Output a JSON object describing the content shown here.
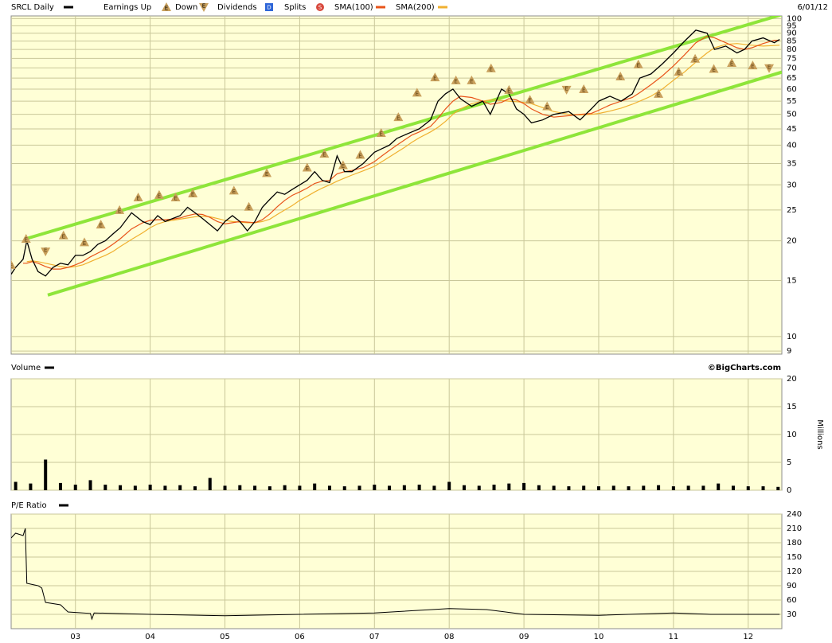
{
  "chart_data": [
    {
      "type": "line",
      "date": "6/01/12",
      "log_scale": true,
      "grid": true,
      "legend_items": [
        {
          "label": "Earnings Up",
          "icon": "E"
        },
        {
          "label": "Down",
          "icon": "E"
        },
        {
          "label": "Dividends",
          "icon": "D"
        },
        {
          "label": "Splits",
          "icon": "S"
        }
      ],
      "xlim": [
        2002.14,
        2012.45
      ],
      "xticks": [
        {
          "value": 2003,
          "label": "03"
        },
        {
          "value": 2004,
          "label": "04"
        },
        {
          "value": 2005,
          "label": "05"
        },
        {
          "value": 2006,
          "label": "06"
        },
        {
          "value": 2007,
          "label": "07"
        },
        {
          "value": 2008,
          "label": "08"
        },
        {
          "value": 2009,
          "label": "09"
        },
        {
          "value": 2010,
          "label": "10"
        },
        {
          "value": 2011,
          "label": "11"
        },
        {
          "value": 2012,
          "label": "12"
        }
      ],
      "ylim": [
        8.8,
        102
      ],
      "yticks": [
        9,
        10,
        15,
        20,
        25,
        30,
        35,
        40,
        45,
        50,
        55,
        60,
        65,
        70,
        75,
        80,
        85,
        90,
        95,
        100
      ],
      "x": [
        2002.14,
        2002.2,
        2002.3,
        2002.35,
        2002.42,
        2002.5,
        2002.6,
        2002.7,
        2002.8,
        2002.9,
        2003.0,
        2003.1,
        2003.2,
        2003.3,
        2003.4,
        2003.5,
        2003.6,
        2003.75,
        2003.9,
        2004.0,
        2004.1,
        2004.2,
        2004.3,
        2004.4,
        2004.5,
        2004.6,
        2004.7,
        2004.8,
        2004.9,
        2005.0,
        2005.1,
        2005.2,
        2005.3,
        2005.4,
        2005.5,
        2005.6,
        2005.7,
        2005.8,
        2005.9,
        2006.0,
        2006.1,
        2006.2,
        2006.3,
        2006.4,
        2006.5,
        2006.6,
        2006.7,
        2006.85,
        2007.0,
        2007.1,
        2007.2,
        2007.3,
        2007.4,
        2007.5,
        2007.6,
        2007.75,
        2007.85,
        2007.95,
        2008.05,
        2008.15,
        2008.3,
        2008.45,
        2008.55,
        2008.7,
        2008.8,
        2008.9,
        2009.0,
        2009.1,
        2009.25,
        2009.4,
        2009.6,
        2009.75,
        2009.9,
        2010.0,
        2010.15,
        2010.3,
        2010.45,
        2010.55,
        2010.7,
        2010.85,
        2011.0,
        2011.15,
        2011.3,
        2011.45,
        2011.55,
        2011.7,
        2011.85,
        2011.95,
        2012.05,
        2012.2,
        2012.35,
        2012.42
      ],
      "series": [
        {
          "name": "SRCL Daily",
          "color": "#000000",
          "values": [
            15.7,
            16.5,
            17.5,
            20,
            17.5,
            16,
            15.5,
            16.5,
            17,
            16.8,
            18,
            18,
            18.5,
            19.5,
            20,
            21,
            22,
            24.5,
            23,
            22.5,
            24,
            23,
            23.5,
            24,
            25.5,
            24.5,
            23.5,
            22.5,
            21.5,
            23,
            24,
            23,
            21.5,
            23,
            25.5,
            27,
            28.5,
            28,
            29,
            30,
            31,
            33,
            31,
            30.5,
            37,
            33,
            33,
            35,
            38,
            39,
            40,
            42,
            43,
            44,
            45,
            48,
            55,
            58,
            60,
            56,
            53,
            55,
            50,
            60,
            58,
            52,
            50,
            47,
            48,
            50,
            51,
            48,
            52,
            55,
            57,
            55,
            58,
            65,
            67,
            72,
            78,
            85,
            92,
            90,
            80,
            82,
            78,
            80,
            85,
            87,
            84,
            86
          ]
        },
        {
          "name": "SMA(100)",
          "color": "#e8541a",
          "values": [
            null,
            null,
            17,
            17,
            17.2,
            17,
            16.6,
            16.3,
            16.3,
            16.5,
            16.8,
            17.2,
            17.8,
            18.3,
            18.8,
            19.5,
            20.3,
            21.8,
            22.8,
            23.2,
            23.3,
            23.3,
            23.4,
            23.6,
            24,
            24.3,
            24.2,
            23.7,
            23,
            22.6,
            22.8,
            23,
            22.9,
            22.8,
            23.3,
            24.3,
            25.6,
            26.8,
            27.8,
            28.5,
            29.3,
            30.3,
            30.8,
            31,
            32.5,
            33,
            33.3,
            34,
            35.5,
            37,
            38.5,
            40,
            41.5,
            43,
            44,
            45.8,
            48.5,
            52,
            55,
            57,
            56.5,
            55,
            53.8,
            54.5,
            56,
            55.5,
            54,
            52,
            50,
            49,
            49.5,
            50,
            50.3,
            51.5,
            53.5,
            55,
            56.5,
            58.5,
            62,
            66,
            71,
            77,
            84,
            88,
            87,
            84,
            81,
            80,
            81,
            83.5,
            85.5,
            85.5
          ]
        },
        {
          "name": "SMA(200)",
          "color": "#f0b030",
          "values": [
            null,
            null,
            null,
            17.2,
            17.3,
            17.2,
            17,
            16.8,
            16.6,
            16.5,
            16.6,
            16.8,
            17.2,
            17.6,
            18,
            18.5,
            19.2,
            20.2,
            21.2,
            22,
            22.6,
            23,
            23.2,
            23.4,
            23.6,
            23.8,
            23.9,
            23.8,
            23.5,
            23.2,
            23,
            22.9,
            22.8,
            22.8,
            23,
            23.4,
            24.2,
            25,
            25.8,
            26.8,
            27.6,
            28.5,
            29.3,
            30,
            30.8,
            31.5,
            32.2,
            33.2,
            34.3,
            35.5,
            36.7,
            38,
            39.3,
            40.8,
            42.2,
            44,
            45.5,
            47.5,
            50,
            52,
            54,
            55,
            55.5,
            55.3,
            55,
            54.8,
            54.5,
            54,
            52.5,
            51,
            50,
            49.8,
            50,
            50.3,
            51.2,
            52.3,
            53.8,
            55,
            57,
            60,
            64,
            68,
            73,
            78,
            81,
            83,
            83.5,
            83,
            82.5,
            82,
            82.3,
            82.5
          ]
        }
      ],
      "trendlines": [
        {
          "color": "#8ee53a",
          "x": [
            2002.34,
            2012.45
          ],
          "values": [
            20.3,
            103
          ]
        },
        {
          "color": "#8ee53a",
          "x": [
            2002.63,
            2012.45
          ],
          "values": [
            13.5,
            67.9
          ]
        }
      ],
      "earnings": [
        {
          "x": 2002.14,
          "value": 16.8,
          "dir": "up"
        },
        {
          "x": 2002.34,
          "value": 20.3,
          "dir": "up"
        },
        {
          "x": 2002.6,
          "value": 18.5,
          "dir": "down"
        },
        {
          "x": 2002.84,
          "value": 20.8,
          "dir": "up"
        },
        {
          "x": 2003.12,
          "value": 19.8,
          "dir": "up"
        },
        {
          "x": 2003.34,
          "value": 22.5,
          "dir": "up"
        },
        {
          "x": 2003.59,
          "value": 25,
          "dir": "up"
        },
        {
          "x": 2003.84,
          "value": 27.4,
          "dir": "up"
        },
        {
          "x": 2004.12,
          "value": 27.9,
          "dir": "up"
        },
        {
          "x": 2004.34,
          "value": 27.4,
          "dir": "up"
        },
        {
          "x": 2004.57,
          "value": 28.2,
          "dir": "up"
        },
        {
          "x": 2005.12,
          "value": 28.8,
          "dir": "up"
        },
        {
          "x": 2005.32,
          "value": 25.6,
          "dir": "up"
        },
        {
          "x": 2005.56,
          "value": 32.7,
          "dir": "up"
        },
        {
          "x": 2006.1,
          "value": 34,
          "dir": "up"
        },
        {
          "x": 2006.33,
          "value": 37.6,
          "dir": "up"
        },
        {
          "x": 2006.58,
          "value": 34.6,
          "dir": "up"
        },
        {
          "x": 2006.81,
          "value": 37.3,
          "dir": "up"
        },
        {
          "x": 2007.09,
          "value": 43.7,
          "dir": "up"
        },
        {
          "x": 2007.32,
          "value": 49,
          "dir": "up"
        },
        {
          "x": 2007.57,
          "value": 58.5,
          "dir": "up"
        },
        {
          "x": 2007.81,
          "value": 65.4,
          "dir": "up"
        },
        {
          "x": 2008.09,
          "value": 64,
          "dir": "up"
        },
        {
          "x": 2008.3,
          "value": 64,
          "dir": "up"
        },
        {
          "x": 2008.56,
          "value": 69.8,
          "dir": "up"
        },
        {
          "x": 2008.8,
          "value": 59.7,
          "dir": "up"
        },
        {
          "x": 2009.08,
          "value": 55.6,
          "dir": "up"
        },
        {
          "x": 2009.31,
          "value": 53,
          "dir": "up"
        },
        {
          "x": 2009.57,
          "value": 59.7,
          "dir": "down"
        },
        {
          "x": 2009.8,
          "value": 60,
          "dir": "up"
        },
        {
          "x": 2010.29,
          "value": 65.8,
          "dir": "up"
        },
        {
          "x": 2010.53,
          "value": 71.8,
          "dir": "up"
        },
        {
          "x": 2010.8,
          "value": 58,
          "dir": "up"
        },
        {
          "x": 2011.07,
          "value": 68.1,
          "dir": "up"
        },
        {
          "x": 2011.29,
          "value": 74.8,
          "dir": "up"
        },
        {
          "x": 2011.54,
          "value": 69.5,
          "dir": "up"
        },
        {
          "x": 2011.78,
          "value": 72.6,
          "dir": "up"
        },
        {
          "x": 2012.06,
          "value": 71.3,
          "dir": "up"
        },
        {
          "x": 2012.28,
          "value": 69.8,
          "dir": "down"
        }
      ]
    },
    {
      "type": "bar",
      "title": "Volume",
      "source": "©BigCharts.com",
      "y_label": "Millions",
      "color": "#000000",
      "grid": true,
      "xlim": [
        2002.14,
        2012.45
      ],
      "ylim": [
        0,
        20
      ],
      "yticks": [
        0,
        5,
        10,
        15,
        20
      ],
      "x": [
        2002.2,
        2002.4,
        2002.6,
        2002.8,
        2003.0,
        2003.2,
        2003.4,
        2003.6,
        2003.8,
        2004.0,
        2004.2,
        2004.4,
        2004.6,
        2004.8,
        2005.0,
        2005.2,
        2005.4,
        2005.6,
        2005.8,
        2006.0,
        2006.2,
        2006.4,
        2006.6,
        2006.8,
        2007.0,
        2007.2,
        2007.4,
        2007.6,
        2007.8,
        2008.0,
        2008.2,
        2008.4,
        2008.6,
        2008.8,
        2009.0,
        2009.2,
        2009.4,
        2009.6,
        2009.8,
        2010.0,
        2010.2,
        2010.4,
        2010.6,
        2010.8,
        2011.0,
        2011.2,
        2011.4,
        2011.6,
        2011.8,
        2012.0,
        2012.2,
        2012.4
      ],
      "values": [
        1.5,
        1.2,
        5.5,
        1.3,
        1.0,
        1.8,
        1.0,
        0.9,
        0.8,
        1.0,
        0.8,
        0.9,
        0.7,
        2.2,
        0.8,
        0.9,
        0.8,
        0.7,
        0.9,
        0.8,
        1.2,
        0.8,
        0.7,
        0.8,
        1.0,
        0.8,
        0.9,
        1.0,
        0.8,
        1.5,
        0.9,
        0.8,
        1.0,
        1.2,
        1.3,
        0.9,
        0.8,
        0.7,
        0.8,
        0.7,
        0.8,
        0.7,
        0.8,
        0.9,
        0.7,
        0.8,
        0.8,
        1.2,
        0.8,
        0.7,
        0.7,
        0.6
      ]
    },
    {
      "type": "line",
      "title": "P/E Ratio",
      "color": "#000000",
      "grid": true,
      "xlim": [
        2002.14,
        2012.45
      ],
      "ylim": [
        0,
        240
      ],
      "yticks": [
        30,
        60,
        90,
        120,
        150,
        180,
        210,
        240
      ],
      "x": [
        2002.14,
        2002.2,
        2002.3,
        2002.33,
        2002.35,
        2002.5,
        2002.55,
        2002.6,
        2002.8,
        2002.9,
        2003.2,
        2003.22,
        2003.25,
        2004,
        2005,
        2006,
        2007,
        2008,
        2008.5,
        2009,
        2010,
        2011,
        2011.5,
        2012,
        2012.42
      ],
      "values": [
        190,
        200,
        195,
        210,
        95,
        90,
        85,
        55,
        50,
        35,
        32,
        20,
        33,
        30,
        27,
        30,
        33,
        42,
        40,
        30,
        28,
        33,
        30,
        30,
        30
      ]
    }
  ]
}
